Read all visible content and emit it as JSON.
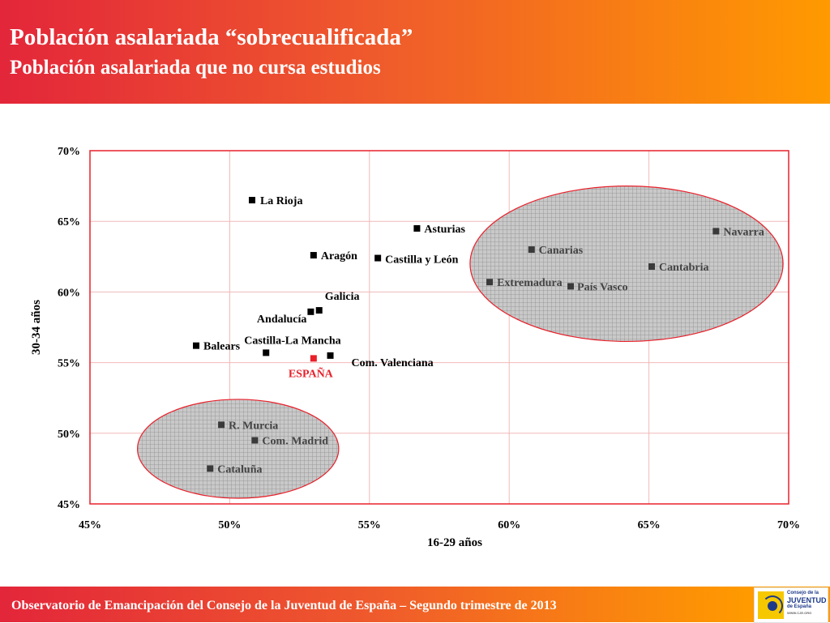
{
  "header": {
    "title": "Población asalariada “sobrecualificada”",
    "subtitle": "Población asalariada que no cursa estudios"
  },
  "footer": {
    "text": "Observatorio de Emancipación del Consejo de la Juventud de España – Segundo trimestre de 2013",
    "logo": {
      "line1": "Consejo de la",
      "line2": "JUVENTUD",
      "line3": "de España",
      "line4": "WWW.CJE.ORG"
    }
  },
  "colors": {
    "header_start": "#e3263a",
    "header_end": "#ff9a00",
    "plot_border": "#e8202a",
    "grid": "#f2b8b8",
    "point": "#000000",
    "highlight": "#e8202a",
    "cluster_fill": "#c9c9c9",
    "cluster_label": "#444444"
  },
  "chart_data": {
    "type": "scatter",
    "xlabel": "16-29 años",
    "ylabel": "30-34 años",
    "xlim": [
      0.45,
      0.7
    ],
    "ylim": [
      0.45,
      0.7
    ],
    "xticks": [
      "45%",
      "50%",
      "55%",
      "60%",
      "65%",
      "70%"
    ],
    "yticks": [
      "70%",
      "65%",
      "60%",
      "55%",
      "50%",
      "45%"
    ],
    "grid": true,
    "points": [
      {
        "label": "La Rioja",
        "x": 0.508,
        "y": 0.665,
        "group": "normal"
      },
      {
        "label": "Asturias",
        "x": 0.567,
        "y": 0.645,
        "group": "normal"
      },
      {
        "label": "Aragón",
        "x": 0.53,
        "y": 0.626,
        "group": "normal"
      },
      {
        "label": "Castilla y León",
        "x": 0.553,
        "y": 0.624,
        "group": "normal"
      },
      {
        "label": "Galicia",
        "x": 0.532,
        "y": 0.587,
        "group": "normal"
      },
      {
        "label": "Andalucía",
        "x": 0.529,
        "y": 0.586,
        "group": "normal"
      },
      {
        "label": "Balears",
        "x": 0.488,
        "y": 0.562,
        "group": "normal"
      },
      {
        "label": "Castilla-La Mancha",
        "x": 0.513,
        "y": 0.557,
        "group": "normal"
      },
      {
        "label": "Com. Valenciana",
        "x": 0.536,
        "y": 0.555,
        "group": "normal"
      },
      {
        "label": "ESPAÑA",
        "x": 0.53,
        "y": 0.553,
        "group": "highlight"
      },
      {
        "label": "Navarra",
        "x": 0.674,
        "y": 0.643,
        "group": "high"
      },
      {
        "label": "Canarias",
        "x": 0.608,
        "y": 0.63,
        "group": "high"
      },
      {
        "label": "Cantabria",
        "x": 0.651,
        "y": 0.618,
        "group": "high"
      },
      {
        "label": "Extremadura",
        "x": 0.593,
        "y": 0.607,
        "group": "high"
      },
      {
        "label": "País Vasco",
        "x": 0.622,
        "y": 0.604,
        "group": "high"
      },
      {
        "label": "R. Murcia",
        "x": 0.497,
        "y": 0.506,
        "group": "low"
      },
      {
        "label": "Com. Madrid",
        "x": 0.509,
        "y": 0.495,
        "group": "low"
      },
      {
        "label": "Cataluña",
        "x": 0.493,
        "y": 0.475,
        "group": "low"
      }
    ],
    "clusters": [
      {
        "name": "high",
        "cx": 0.642,
        "cy": 0.62,
        "rx": 0.056,
        "ry": 0.055
      },
      {
        "name": "low",
        "cx": 0.503,
        "cy": 0.489,
        "rx": 0.036,
        "ry": 0.035
      }
    ]
  }
}
